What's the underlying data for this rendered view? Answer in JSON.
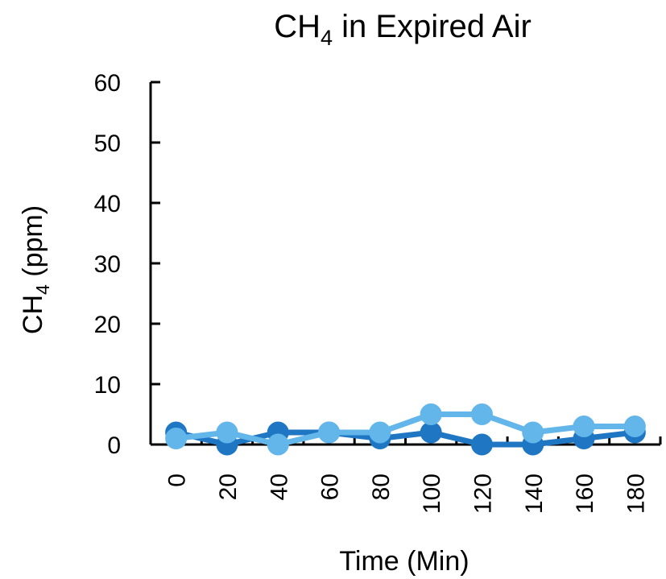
{
  "chart_data": {
    "type": "line",
    "title": {
      "main": "CH",
      "sub": "4",
      "rest": " in Expired Air"
    },
    "xlabel": "Time (Min)",
    "ylabel": {
      "main": "CH",
      "sub": "4",
      "rest": " (ppm)"
    },
    "categories": [
      "0",
      "20",
      "40",
      "60",
      "80",
      "100",
      "120",
      "140",
      "160",
      "180"
    ],
    "ylim": [
      0,
      60
    ],
    "yticks": [
      0,
      10,
      20,
      30,
      40,
      50,
      60
    ],
    "grid": false,
    "series": [
      {
        "color": "#1f77c4",
        "values": [
          2,
          0,
          2,
          2,
          1,
          2,
          0,
          0,
          1,
          2
        ]
      },
      {
        "color": "#63b6ea",
        "values": [
          1,
          2,
          0,
          2,
          2,
          5,
          5,
          2,
          3,
          3
        ]
      }
    ]
  }
}
